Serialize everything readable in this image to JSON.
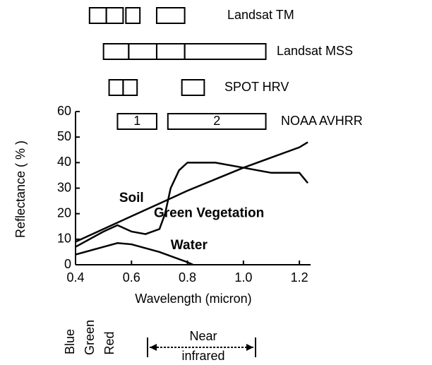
{
  "chart_data": {
    "type": "line",
    "xlabel": "Wavelength (micron)",
    "ylabel": "Reflectance ( % )",
    "xlim": [
      0.4,
      1.24
    ],
    "xticks": [
      0.4,
      0.6,
      0.8,
      {
        "value": 1,
        "label": "1.0"
      },
      1.2
    ],
    "ylim": [
      0,
      60
    ],
    "yticks": [
      0,
      10,
      20,
      30,
      40,
      50,
      60
    ],
    "series": [
      {
        "name": "Soil",
        "color": "#000000",
        "x": [
          0.4,
          0.5,
          0.6,
          0.7,
          0.8,
          0.9,
          1.0,
          1.1,
          1.2,
          1.23
        ],
        "values": [
          9,
          14,
          19,
          24,
          29,
          33.5,
          38,
          42,
          46,
          48
        ]
      },
      {
        "name": "Green Vegetation",
        "color": "#000000",
        "x": [
          0.4,
          0.5,
          0.55,
          0.6,
          0.65,
          0.7,
          0.72,
          0.74,
          0.77,
          0.8,
          0.9,
          1.0,
          1.1,
          1.2,
          1.23
        ],
        "values": [
          7,
          13,
          15.5,
          13,
          12,
          14,
          20,
          30,
          37,
          40,
          40,
          38,
          36,
          36,
          32
        ]
      },
      {
        "name": "Water",
        "color": "#000000",
        "x": [
          0.4,
          0.5,
          0.55,
          0.6,
          0.7,
          0.8,
          0.82
        ],
        "values": [
          4,
          7,
          8.5,
          8,
          5,
          1,
          0
        ]
      }
    ],
    "sensors": [
      {
        "name": "Landsat TM",
        "bands": [
          [
            0.45,
            0.51
          ],
          [
            0.51,
            0.57
          ],
          [
            0.58,
            0.63
          ],
          [
            0.69,
            0.79
          ]
        ]
      },
      {
        "name": "Landsat MSS",
        "bands": [
          [
            0.5,
            0.59
          ],
          [
            0.59,
            0.69
          ],
          [
            0.69,
            0.79
          ],
          [
            0.79,
            1.08
          ]
        ]
      },
      {
        "name": "SPOT HRV",
        "bands": [
          [
            0.52,
            0.57
          ],
          [
            0.57,
            0.62
          ],
          [
            0.78,
            0.86
          ]
        ]
      },
      {
        "name": "NOAA AVHRR",
        "bands": [
          [
            0.55,
            0.69
          ],
          [
            0.73,
            1.08
          ]
        ],
        "band_labels": [
          "1",
          "2"
        ]
      }
    ],
    "regions": [
      "Blue",
      "Green",
      "Red"
    ],
    "nir_label": [
      "Near",
      "infrared"
    ]
  }
}
